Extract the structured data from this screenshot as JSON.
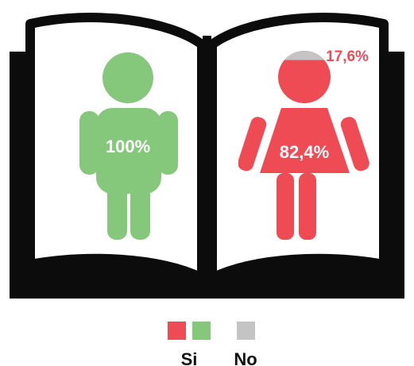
{
  "chart_data": {
    "type": "pictograph",
    "categories": [
      "male",
      "female"
    ],
    "series": [
      {
        "name": "Si",
        "values": [
          100,
          82.4
        ]
      },
      {
        "name": "No",
        "values": [
          0,
          17.6
        ]
      }
    ],
    "labels": {
      "male_si": "100%",
      "female_si": "82,4%",
      "female_no": "17,6%"
    },
    "legend": {
      "position": "bottom",
      "items": [
        {
          "label": "Si"
        },
        {
          "label": "No"
        }
      ]
    }
  },
  "colors": {
    "male_si": "#85c77b",
    "female_si": "#ef4b55",
    "no": "#c4c4c4",
    "book": "#0c0c0c",
    "page": "#ffffff"
  }
}
